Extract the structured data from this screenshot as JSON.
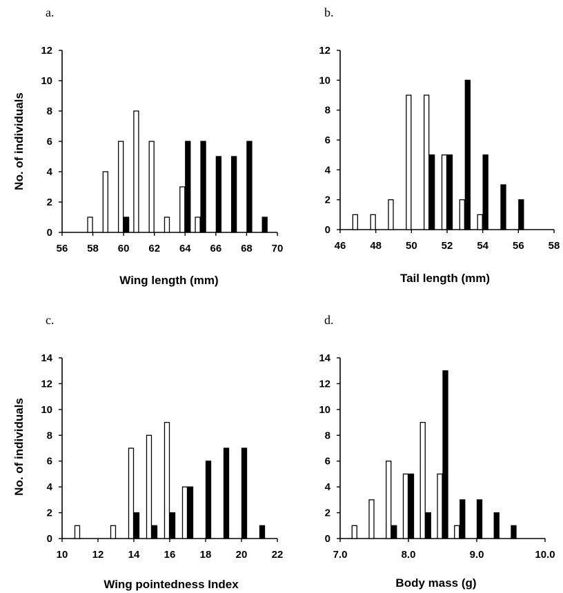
{
  "chart_data": [
    {
      "panel": "a.",
      "type": "bar",
      "xlabel": "Wing length (mm)",
      "ylabel": "No. of individuals",
      "xlim": [
        56,
        70
      ],
      "ylim": [
        0,
        12
      ],
      "xticks": [
        "56",
        "58",
        "60",
        "62",
        "64",
        "66",
        "68",
        "70"
      ],
      "yticks": [
        "0",
        "2",
        "4",
        "6",
        "8",
        "10",
        "12"
      ],
      "series": [
        {
          "fill": "open",
          "color": "#ffffff",
          "points": [
            {
              "x": 58,
              "y": 1
            },
            {
              "x": 59,
              "y": 4
            },
            {
              "x": 60,
              "y": 6
            },
            {
              "x": 61,
              "y": 8
            },
            {
              "x": 62,
              "y": 6
            },
            {
              "x": 63,
              "y": 1
            },
            {
              "x": 64,
              "y": 3
            },
            {
              "x": 65,
              "y": 1
            }
          ]
        },
        {
          "fill": "solid",
          "color": "#000000",
          "points": [
            {
              "x": 60,
              "y": 1
            },
            {
              "x": 64,
              "y": 6
            },
            {
              "x": 65,
              "y": 6
            },
            {
              "x": 66,
              "y": 5
            },
            {
              "x": 67,
              "y": 5
            },
            {
              "x": 68,
              "y": 6
            },
            {
              "x": 69,
              "y": 1
            }
          ]
        }
      ]
    },
    {
      "panel": "b.",
      "type": "bar",
      "xlabel": "Tail length (mm)",
      "ylabel": "",
      "xlim": [
        46,
        58
      ],
      "ylim": [
        0,
        12
      ],
      "xticks": [
        "46",
        "48",
        "50",
        "52",
        "54",
        "56",
        "58"
      ],
      "yticks": [
        "0",
        "2",
        "4",
        "6",
        "8",
        "10",
        "12"
      ],
      "series": [
        {
          "fill": "open",
          "color": "#ffffff",
          "points": [
            {
              "x": 47,
              "y": 1
            },
            {
              "x": 48,
              "y": 1
            },
            {
              "x": 49,
              "y": 2
            },
            {
              "x": 50,
              "y": 9
            },
            {
              "x": 51,
              "y": 9
            },
            {
              "x": 52,
              "y": 5
            },
            {
              "x": 53,
              "y": 2
            },
            {
              "x": 54,
              "y": 1
            }
          ]
        },
        {
          "fill": "solid",
          "color": "#000000",
          "points": [
            {
              "x": 51,
              "y": 5
            },
            {
              "x": 52,
              "y": 5
            },
            {
              "x": 53,
              "y": 10
            },
            {
              "x": 54,
              "y": 5
            },
            {
              "x": 55,
              "y": 3
            },
            {
              "x": 56,
              "y": 2
            }
          ]
        }
      ]
    },
    {
      "panel": "c.",
      "type": "bar",
      "xlabel": "Wing pointedness Index",
      "ylabel": "No. of individuals",
      "xlim": [
        10,
        22
      ],
      "ylim": [
        0,
        14
      ],
      "xticks": [
        "10",
        "12",
        "14",
        "16",
        "18",
        "20",
        "22"
      ],
      "yticks": [
        "0",
        "2",
        "4",
        "6",
        "8",
        "10",
        "12",
        "14"
      ],
      "series": [
        {
          "fill": "open",
          "color": "#ffffff",
          "points": [
            {
              "x": 11,
              "y": 1
            },
            {
              "x": 13,
              "y": 1
            },
            {
              "x": 14,
              "y": 7
            },
            {
              "x": 15,
              "y": 8
            },
            {
              "x": 16,
              "y": 9
            },
            {
              "x": 17,
              "y": 4
            }
          ]
        },
        {
          "fill": "solid",
          "color": "#000000",
          "points": [
            {
              "x": 14,
              "y": 2
            },
            {
              "x": 15,
              "y": 1
            },
            {
              "x": 16,
              "y": 2
            },
            {
              "x": 17,
              "y": 4
            },
            {
              "x": 18,
              "y": 6
            },
            {
              "x": 19,
              "y": 7
            },
            {
              "x": 20,
              "y": 7
            },
            {
              "x": 21,
              "y": 1
            }
          ]
        }
      ]
    },
    {
      "panel": "d.",
      "type": "bar",
      "xlabel": "Body mass (g)",
      "ylabel": "",
      "xlim": [
        7.0,
        10.0
      ],
      "ylim": [
        0,
        14
      ],
      "xticks": [
        "7.0",
        "8.0",
        "9.0",
        "10.0"
      ],
      "xtick_values": [
        7.0,
        8.0,
        9.0,
        10.0
      ],
      "yticks": [
        "0",
        "2",
        "4",
        "6",
        "8",
        "10",
        "12",
        "14"
      ],
      "series": [
        {
          "fill": "open",
          "color": "#ffffff",
          "points": [
            {
              "x": 7.25,
              "y": 1
            },
            {
              "x": 7.5,
              "y": 3
            },
            {
              "x": 7.75,
              "y": 6
            },
            {
              "x": 8.0,
              "y": 5
            },
            {
              "x": 8.25,
              "y": 9
            },
            {
              "x": 8.5,
              "y": 5
            },
            {
              "x": 8.75,
              "y": 1
            }
          ]
        },
        {
          "fill": "solid",
          "color": "#000000",
          "points": [
            {
              "x": 7.75,
              "y": 1
            },
            {
              "x": 8.0,
              "y": 5
            },
            {
              "x": 8.25,
              "y": 2
            },
            {
              "x": 8.5,
              "y": 13
            },
            {
              "x": 8.75,
              "y": 3
            },
            {
              "x": 9.0,
              "y": 3
            },
            {
              "x": 9.25,
              "y": 2
            },
            {
              "x": 9.5,
              "y": 1
            }
          ]
        }
      ]
    }
  ]
}
